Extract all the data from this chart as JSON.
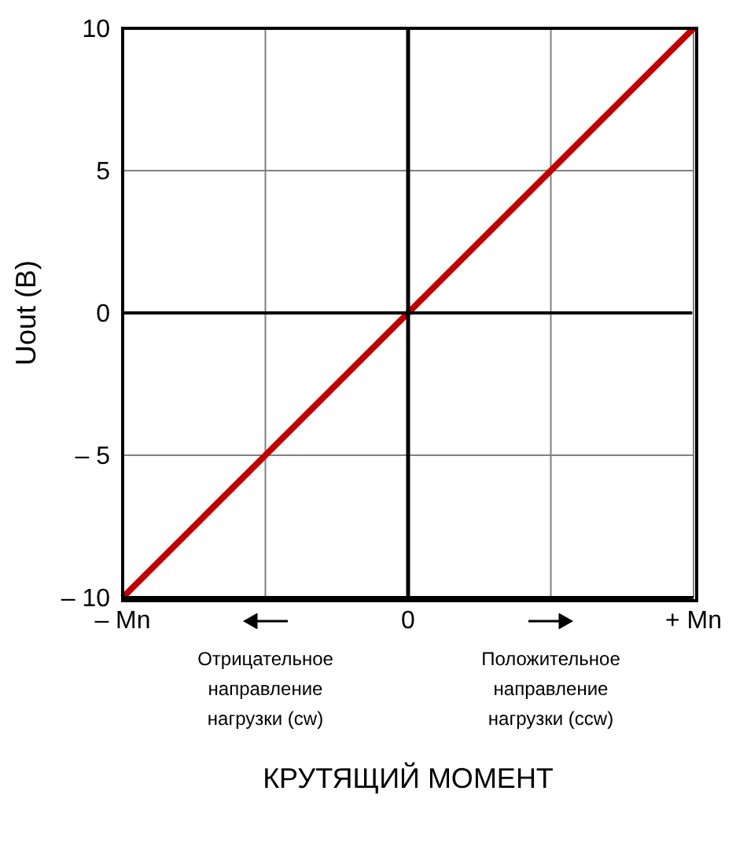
{
  "chart_data": {
    "type": "line",
    "xlabel": "КРУТЯЩИЙ МОМЕНТ",
    "ylabel": "Uout (B)",
    "categories": [
      "– Mn",
      null,
      "0",
      null,
      "+ Mn"
    ],
    "series": [
      {
        "color": "#c00000",
        "values": [
          -10,
          -5,
          0,
          5,
          10
        ]
      }
    ],
    "ylim": [
      -10,
      10
    ],
    "yticks": [
      {
        "value": -10,
        "label": "– 10"
      },
      {
        "value": -5,
        "label": "– 5"
      },
      0,
      5,
      10
    ],
    "grid": true,
    "marker": "none",
    "line_style": "solid",
    "ref_lines": [
      {
        "axis": "x",
        "value": "0",
        "color": "#000000"
      }
    ],
    "annotations": [
      "Отрицательное направление нагрузки (cw)",
      "Положительное направление нагрузки (ccw)"
    ]
  }
}
